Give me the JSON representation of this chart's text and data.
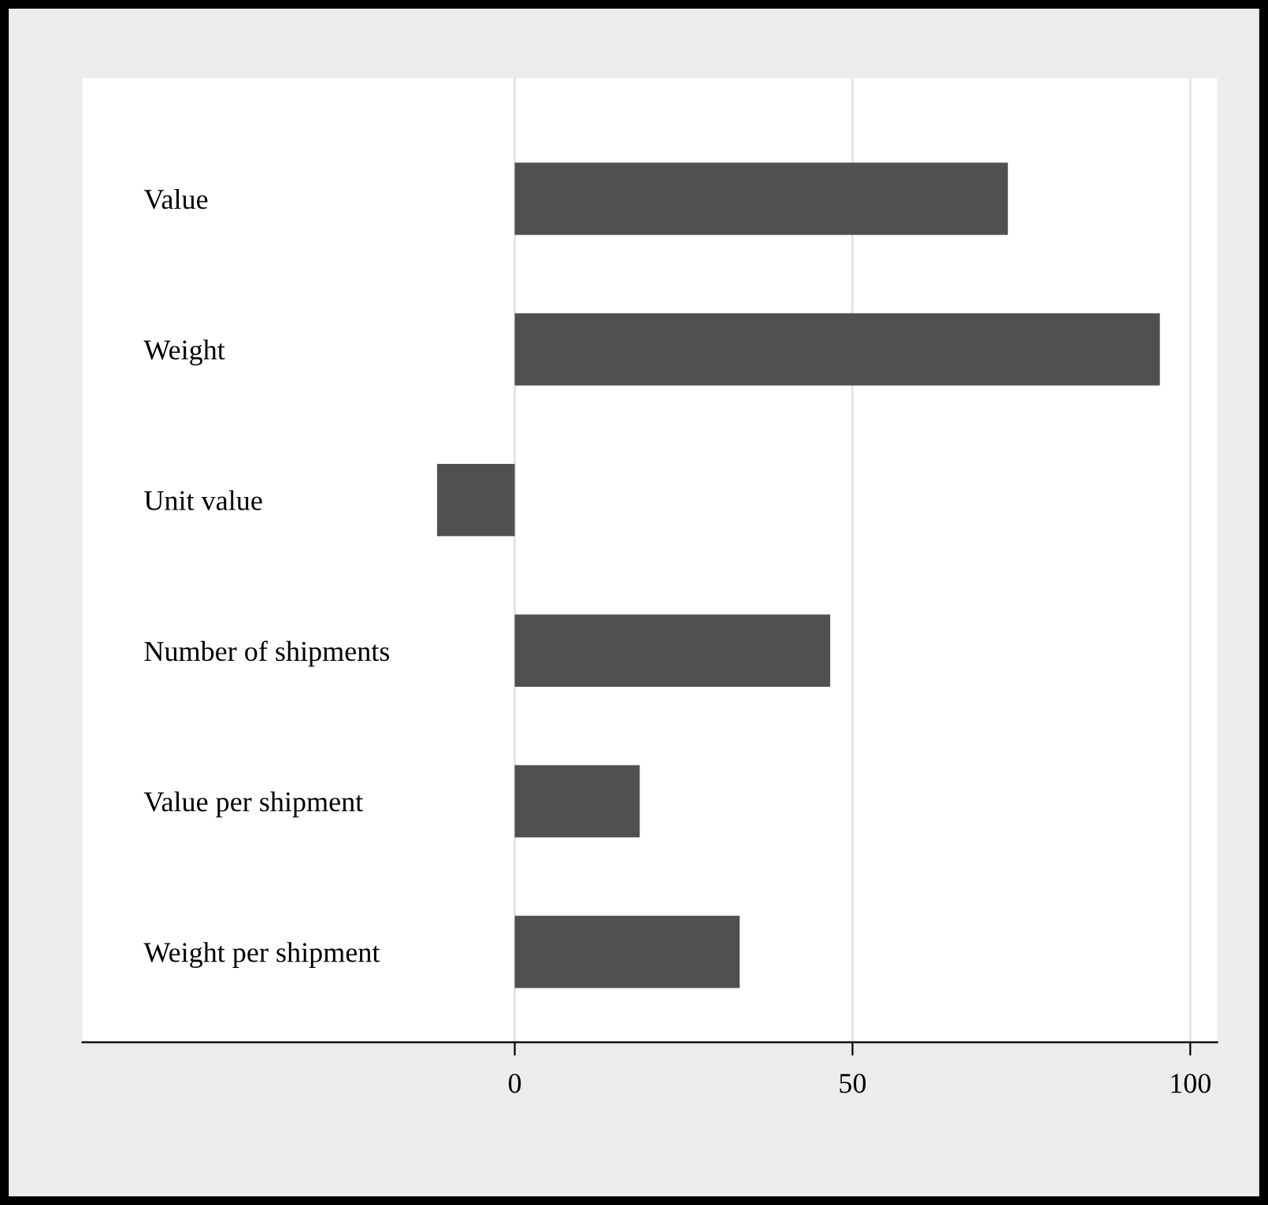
{
  "chart_data": {
    "type": "bar",
    "orientation": "horizontal",
    "categories": [
      "Value",
      "Weight",
      "Unit value",
      "Number of shipments",
      "Value per shipment",
      "Weight per shipment"
    ],
    "values": [
      73.0,
      95.5,
      -11.5,
      46.7,
      18.5,
      33.3
    ],
    "color": "#505050",
    "xlim": [
      -64,
      104
    ],
    "xticks": [
      0,
      50,
      100
    ],
    "grid": "x"
  }
}
